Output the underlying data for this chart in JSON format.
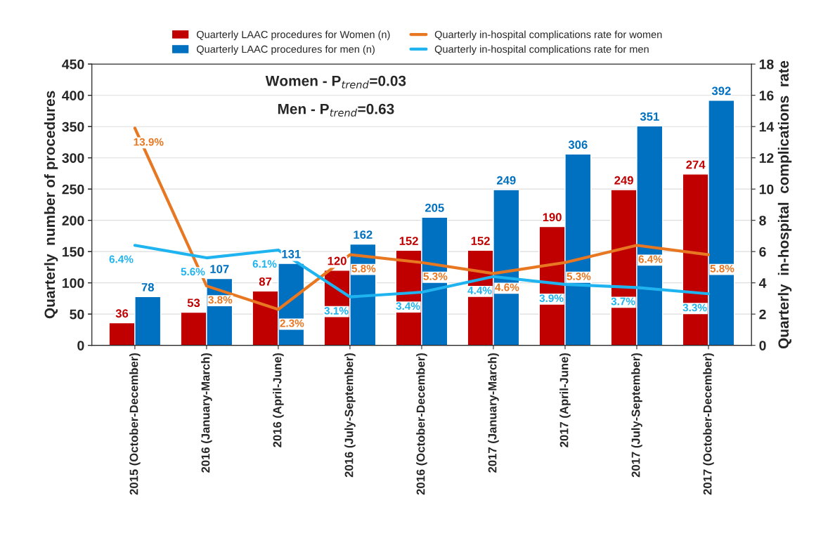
{
  "chart_data": {
    "type": "bar",
    "categories": [
      "2015 (October-December)",
      "2016 (January-March)",
      "2016 (April-June)",
      "2016 (July-September)",
      "2016 (October-December)",
      "2017 (January-March)",
      "2017 (April-June)",
      "2017 (July-September)",
      "2017 (October-December)"
    ],
    "series": [
      {
        "name": "Quarterly LAAC procedures for Women (n)",
        "color": "#c00000",
        "values": [
          36,
          53,
          87,
          120,
          152,
          152,
          190,
          249,
          274
        ],
        "value_labels": [
          "36",
          "53",
          "87",
          "120",
          "152",
          "152",
          "190",
          "249",
          "274"
        ]
      },
      {
        "name": "Quarterly LAAC procedures for men (n)",
        "color": "#0070c0",
        "values": [
          78,
          107,
          131,
          162,
          205,
          249,
          306,
          351,
          392
        ],
        "value_labels": [
          "78",
          "107",
          "131",
          "162",
          "205",
          "249",
          "306",
          "351",
          "392"
        ]
      },
      {
        "name": "Quarterly in-hospital complications rate for women",
        "type": "line",
        "axis": "y2",
        "color": "#e87722",
        "values": [
          13.9,
          3.8,
          2.3,
          5.8,
          5.3,
          4.6,
          5.3,
          6.4,
          5.8
        ],
        "value_labels": [
          "13.9%",
          "3.8%",
          "2.3%",
          "5.8%",
          "5.3%",
          "4.6%",
          "5.3%",
          "6.4%",
          "5.8%"
        ]
      },
      {
        "name": "Quarterly in-hospital complications rate for men",
        "type": "line",
        "axis": "y2",
        "color": "#1fb4ef",
        "values": [
          6.4,
          5.6,
          6.1,
          3.1,
          3.4,
          4.4,
          3.9,
          3.7,
          3.3
        ],
        "value_labels": [
          "6.4%",
          "5.6%",
          "6.1%",
          "3.1%",
          "3.4%",
          "4.4%",
          "3.9%",
          "3.7%",
          "3.3%"
        ]
      }
    ],
    "ylabel": "Quarterly  number of procedures",
    "y2label": "Quarterly  in-hospital  complications  rate",
    "ylim": [
      0,
      450
    ],
    "yticks": [
      0,
      50,
      100,
      150,
      200,
      250,
      300,
      350,
      400,
      450
    ],
    "y2lim": [
      0,
      18
    ],
    "y2ticks": [
      0,
      2,
      4,
      6,
      8,
      10,
      12,
      14,
      16,
      18
    ],
    "annotations": [
      "Women - P$_{trend}$=0.03",
      "Men - P$_{trend}$=0.63"
    ],
    "grid": "y",
    "legend": "top",
    "marker": "none",
    "line_style": "solid"
  }
}
